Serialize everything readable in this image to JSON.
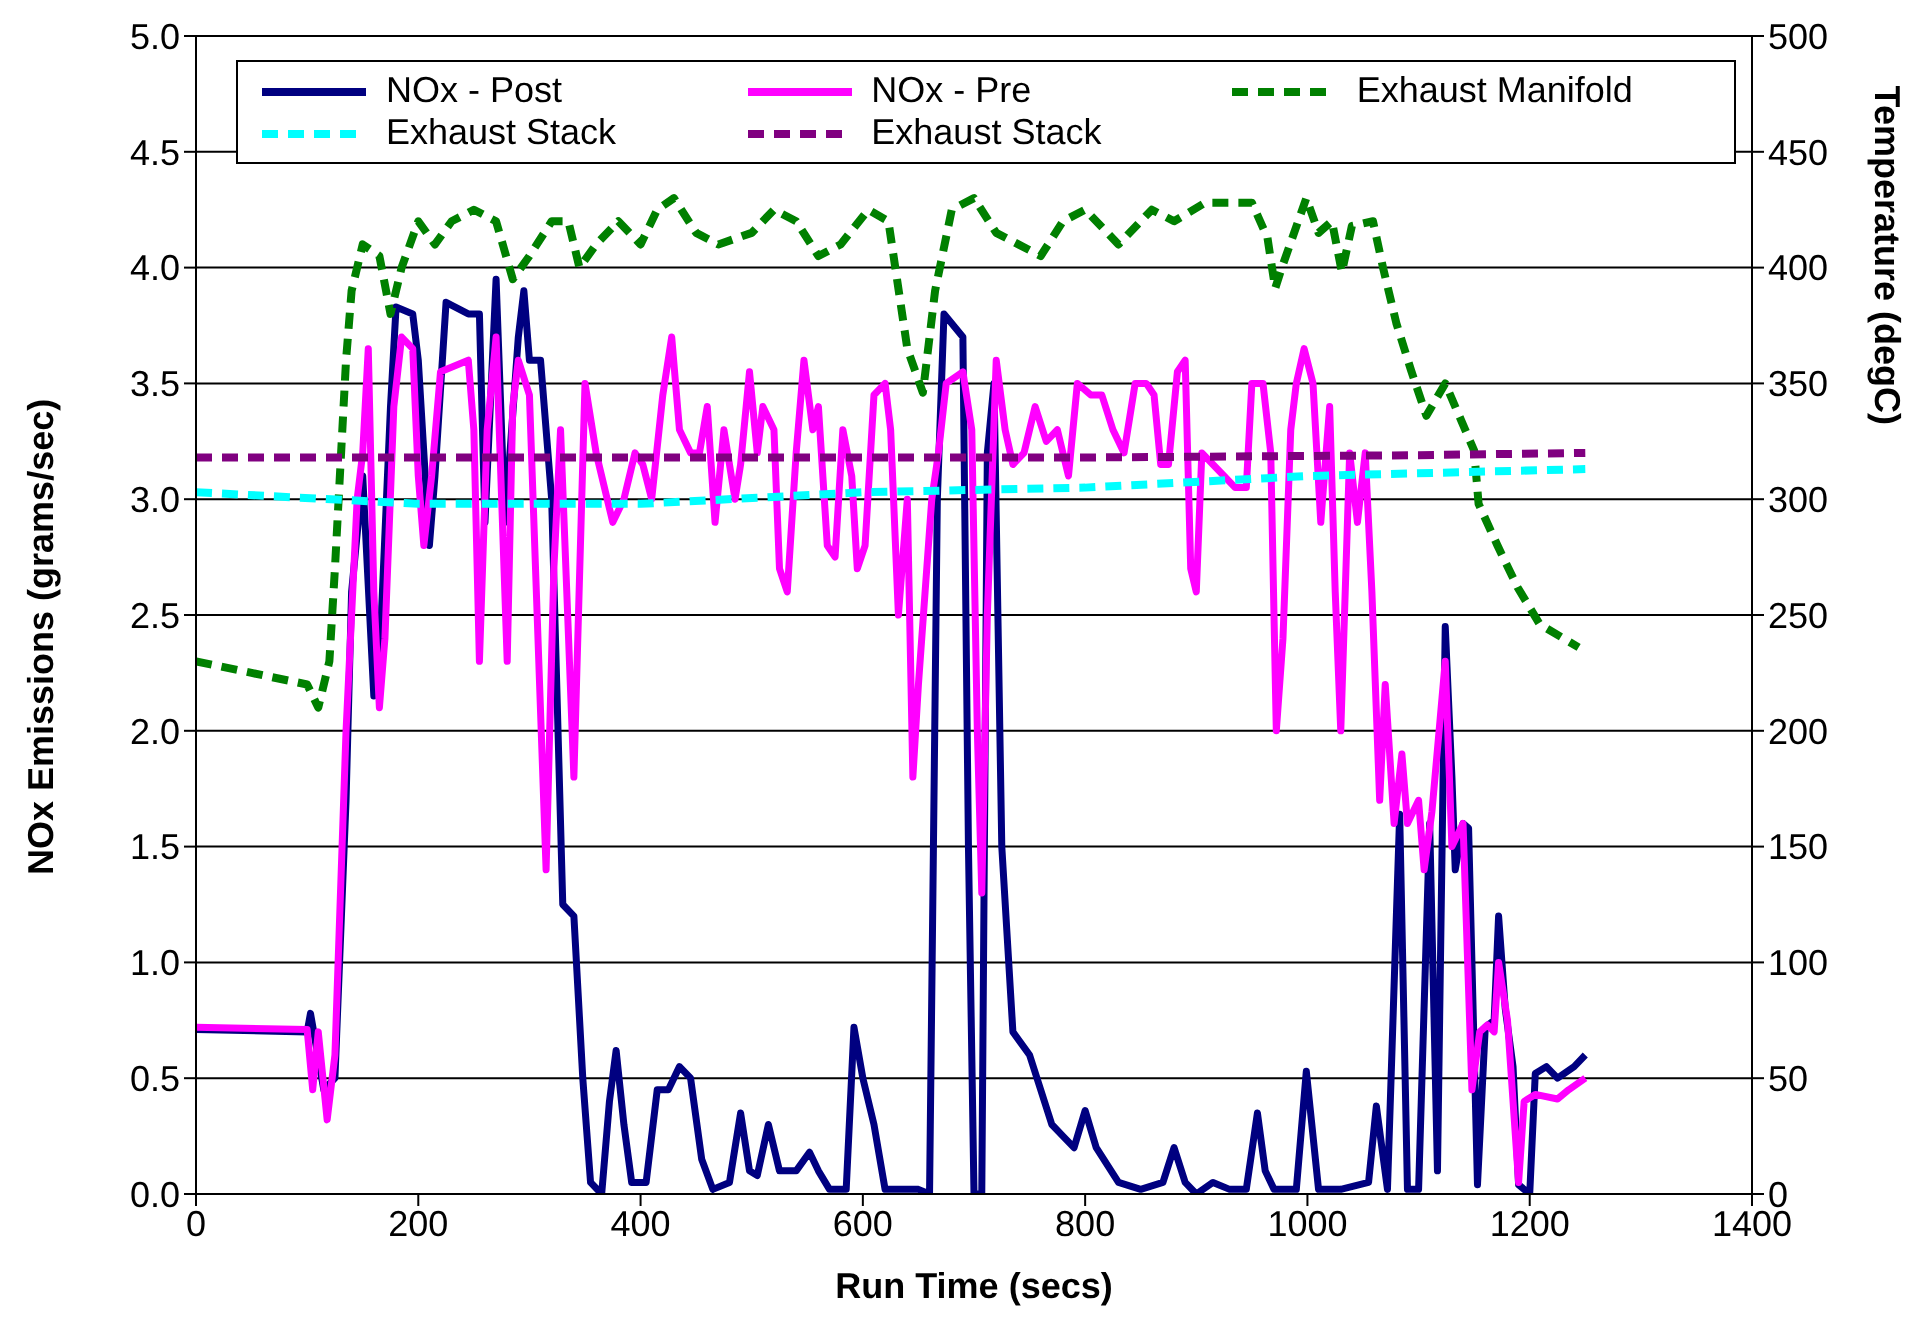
{
  "chart_data": {
    "type": "line",
    "xlabel": "Run Time (secs)",
    "ylabel": "NOx Emissions (grams/sec)",
    "y2label": "Temperature (degC)",
    "xlim": [
      0,
      1400
    ],
    "xticks": [
      0,
      200,
      400,
      600,
      800,
      1000,
      1200,
      1400
    ],
    "ylim": [
      0,
      5
    ],
    "yticks": [
      {
        "value": 0,
        "label": "0.0"
      },
      {
        "value": 0.5,
        "label": "0.5"
      },
      {
        "value": 1,
        "label": "1.0"
      },
      {
        "value": 1.5,
        "label": "1.5"
      },
      {
        "value": 2,
        "label": "2.0"
      },
      {
        "value": 2.5,
        "label": "2.5"
      },
      {
        "value": 3,
        "label": "3.0"
      },
      {
        "value": 3.5,
        "label": "3.5"
      },
      {
        "value": 4,
        "label": "4.0"
      },
      {
        "value": 4.5,
        "label": "4.5"
      },
      {
        "value": 5,
        "label": "5.0"
      }
    ],
    "y2lim": [
      0,
      500
    ],
    "y2ticks": [
      0,
      50,
      100,
      150,
      200,
      250,
      300,
      350,
      400,
      450,
      500
    ],
    "grid": "y",
    "legend": "top",
    "marker": "none",
    "series": [
      {
        "name": "NOx - Post",
        "color": "#000080",
        "line_style": "solid",
        "x": [
          0,
          100,
          103,
          115,
          125,
          135,
          140,
          150,
          160,
          165,
          175,
          180,
          195,
          200,
          210,
          215,
          225,
          245,
          255,
          260,
          270,
          278,
          290,
          295,
          300,
          310,
          320,
          330,
          340,
          348,
          355,
          365,
          372,
          378,
          385,
          392,
          405,
          415,
          425,
          435,
          445,
          455,
          465,
          480,
          490,
          498,
          505,
          515,
          525,
          540,
          552,
          560,
          570,
          585,
          592,
          600,
          610,
          620,
          650,
          660,
          667,
          673,
          690,
          695,
          700,
          707,
          712,
          718,
          725,
          735,
          750,
          760,
          770,
          780,
          790,
          800,
          810,
          830,
          850,
          870,
          880,
          890,
          900,
          915,
          930,
          945,
          955,
          962,
          970,
          990,
          999,
          1010,
          1030,
          1055,
          1062,
          1072,
          1083,
          1090,
          1100,
          1110,
          1117,
          1124,
          1130,
          1133,
          1140,
          1145,
          1153,
          1160,
          1168,
          1172,
          1178,
          1185,
          1190,
          1200,
          1205,
          1215,
          1225,
          1240,
          1250
        ],
        "values": [
          0.71,
          0.7,
          0.78,
          0.45,
          0.5,
          1.7,
          2.6,
          3.1,
          2.15,
          2.3,
          3.4,
          3.83,
          3.8,
          3.6,
          2.8,
          3.1,
          3.85,
          3.8,
          3.8,
          2.9,
          3.95,
          2.9,
          3.7,
          3.9,
          3.6,
          3.6,
          3.0,
          1.25,
          1.2,
          0.5,
          0.05,
          0.0,
          0.4,
          0.62,
          0.3,
          0.05,
          0.05,
          0.45,
          0.45,
          0.55,
          0.5,
          0.15,
          0.02,
          0.05,
          0.35,
          0.1,
          0.08,
          0.3,
          0.1,
          0.1,
          0.18,
          0.1,
          0.02,
          0.02,
          0.72,
          0.5,
          0.3,
          0.02,
          0.02,
          0.0,
          3.0,
          3.8,
          3.7,
          1.5,
          0.0,
          0.0,
          3.2,
          3.5,
          1.5,
          0.7,
          0.6,
          0.45,
          0.3,
          0.25,
          0.2,
          0.36,
          0.2,
          0.05,
          0.02,
          0.05,
          0.2,
          0.05,
          0.0,
          0.05,
          0.02,
          0.02,
          0.35,
          0.1,
          0.02,
          0.02,
          0.53,
          0.02,
          0.02,
          0.05,
          0.38,
          0.02,
          1.64,
          0.02,
          0.02,
          1.6,
          0.1,
          2.45,
          1.8,
          1.4,
          1.6,
          1.58,
          0.04,
          0.72,
          0.75,
          1.2,
          0.8,
          0.55,
          0.04,
          0.0,
          0.52,
          0.55,
          0.5,
          0.55,
          0.6
        ]
      },
      {
        "name": "NOx - Pre",
        "color": "#ff00ff",
        "line_style": "solid",
        "x": [
          0,
          100,
          105,
          110,
          118,
          125,
          135,
          145,
          150,
          155,
          160,
          165,
          170,
          178,
          185,
          195,
          200,
          205,
          212,
          220,
          245,
          250,
          255,
          262,
          270,
          275,
          280,
          285,
          290,
          300,
          315,
          322,
          328,
          340,
          350,
          360,
          375,
          385,
          395,
          402,
          410,
          420,
          428,
          435,
          445,
          453,
          460,
          467,
          475,
          485,
          490,
          498,
          505,
          510,
          520,
          525,
          532,
          540,
          547,
          555,
          560,
          568,
          575,
          582,
          590,
          595,
          602,
          610,
          620,
          625,
          632,
          640,
          645,
          650,
          656,
          662,
          668,
          675,
          690,
          698,
          703,
          707,
          712,
          720,
          728,
          735,
          745,
          755,
          765,
          775,
          785,
          793,
          805,
          815,
          825,
          835,
          845,
          855,
          862,
          868,
          875,
          883,
          890,
          895,
          900,
          905,
          915,
          925,
          935,
          945,
          950,
          960,
          967,
          972,
          978,
          985,
          990,
          997,
          1005,
          1012,
          1020,
          1025,
          1030,
          1038,
          1045,
          1052,
          1058,
          1065,
          1070,
          1078,
          1085,
          1090,
          1100,
          1105,
          1112,
          1124,
          1130,
          1140,
          1148,
          1155,
          1162,
          1168,
          1172,
          1180,
          1190,
          1195,
          1205,
          1225,
          1235,
          1250
        ],
        "values": [
          0.72,
          0.71,
          0.45,
          0.7,
          0.32,
          0.6,
          2.0,
          3.0,
          3.2,
          3.65,
          2.6,
          2.1,
          2.4,
          3.4,
          3.7,
          3.65,
          3.1,
          2.8,
          3.1,
          3.55,
          3.6,
          3.3,
          2.3,
          3.3,
          3.7,
          3.0,
          2.3,
          3.4,
          3.6,
          3.45,
          1.4,
          2.7,
          3.3,
          1.8,
          3.5,
          3.2,
          2.9,
          3.0,
          3.2,
          3.15,
          3.0,
          3.45,
          3.7,
          3.3,
          3.2,
          3.2,
          3.4,
          2.9,
          3.3,
          3.0,
          3.15,
          3.55,
          3.2,
          3.4,
          3.3,
          2.7,
          2.6,
          3.2,
          3.6,
          3.3,
          3.4,
          2.8,
          2.75,
          3.3,
          3.1,
          2.7,
          2.8,
          3.45,
          3.5,
          3.3,
          2.5,
          3.0,
          1.8,
          2.2,
          2.6,
          3.0,
          3.2,
          3.5,
          3.55,
          3.3,
          2.0,
          1.3,
          2.5,
          3.6,
          3.3,
          3.15,
          3.2,
          3.4,
          3.25,
          3.3,
          3.1,
          3.5,
          3.45,
          3.45,
          3.3,
          3.2,
          3.5,
          3.5,
          3.45,
          3.15,
          3.15,
          3.55,
          3.6,
          2.7,
          2.6,
          3.2,
          3.15,
          3.1,
          3.05,
          3.05,
          3.5,
          3.5,
          3.2,
          2.0,
          2.4,
          3.3,
          3.5,
          3.65,
          3.5,
          2.9,
          3.4,
          2.6,
          2.0,
          3.2,
          2.9,
          3.2,
          2.6,
          1.7,
          2.2,
          1.6,
          1.9,
          1.6,
          1.7,
          1.4,
          1.65,
          2.3,
          1.5,
          1.6,
          0.45,
          0.7,
          0.73,
          0.7,
          1.0,
          0.75,
          0.05,
          0.4,
          0.43,
          0.41,
          0.45,
          0.5
        ]
      },
      {
        "name": "Exhaust Manifold",
        "color": "#008000",
        "line_style": "dashed",
        "axis": "y2",
        "x": [
          0,
          50,
          100,
          110,
          120,
          125,
          135,
          140,
          150,
          165,
          175,
          185,
          200,
          215,
          230,
          250,
          270,
          285,
          300,
          320,
          335,
          345,
          360,
          380,
          400,
          415,
          430,
          450,
          470,
          500,
          520,
          540,
          560,
          580,
          605,
          623,
          640,
          654,
          665,
          680,
          700,
          720,
          760,
          780,
          800,
          830,
          860,
          880,
          908,
          950,
          964,
          971,
          977,
          999,
          1010,
          1022,
          1031,
          1040,
          1059,
          1068,
          1080,
          1093,
          1107,
          1124,
          1150,
          1154,
          1171,
          1189,
          1209,
          1244
        ],
        "values": [
          230,
          225,
          220,
          210,
          230,
          270,
          360,
          390,
          410,
          405,
          380,
          400,
          420,
          410,
          420,
          425,
          420,
          395,
          405,
          420,
          420,
          400,
          410,
          420,
          410,
          425,
          430,
          415,
          410,
          415,
          425,
          420,
          405,
          410,
          425,
          420,
          365,
          346,
          390,
          425,
          430,
          415,
          405,
          420,
          425,
          410,
          425,
          420,
          428,
          428,
          413,
          391,
          400,
          430,
          415,
          420,
          398,
          418,
          420,
          400,
          376,
          356,
          336,
          350,
          321,
          298,
          280,
          262,
          246,
          236
        ]
      },
      {
        "name": "Exhaust Stack",
        "color": "#00ffff",
        "line_style": "dashed",
        "axis": "y2",
        "x": [
          0,
          200,
          400,
          600,
          800,
          1000,
          1250
        ],
        "values": [
          303,
          298,
          298,
          303,
          305,
          310,
          313
        ]
      },
      {
        "name": "Exhaust Stack",
        "color": "#800080",
        "line_style": "dashed",
        "axis": "y2",
        "x": [
          0,
          400,
          800,
          1100,
          1250
        ],
        "values": [
          318,
          318,
          318,
          319,
          320
        ]
      }
    ]
  }
}
